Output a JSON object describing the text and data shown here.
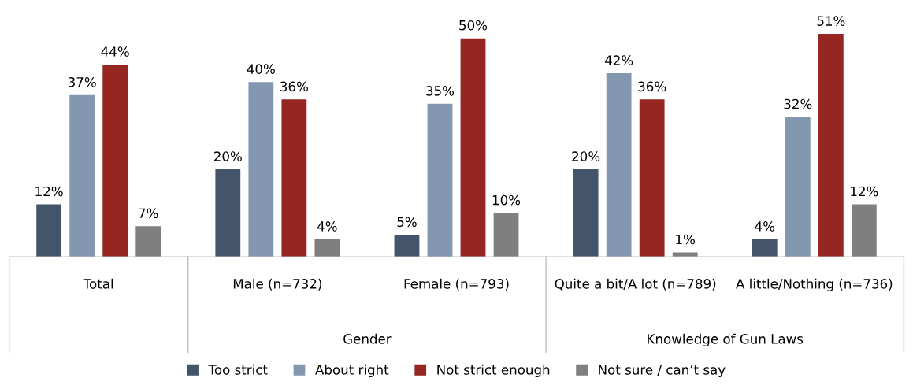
{
  "chart_data": {
    "type": "bar",
    "categories": [
      "Total",
      "Male (n=732)",
      "Female (n=793)",
      "Quite a bit/A lot (n=789)",
      "A little/Nothing (n=736)"
    ],
    "series": [
      {
        "name": "Too strict",
        "color": "#44546a",
        "values": [
          12,
          20,
          5,
          20,
          4
        ],
        "value_labels": [
          "12%",
          "20%",
          "5%",
          "20%",
          "4%"
        ]
      },
      {
        "name": "About right",
        "color": "#8497b0",
        "values": [
          37,
          40,
          35,
          42,
          32
        ],
        "value_labels": [
          "37%",
          "40%",
          "35%",
          "42%",
          "32%"
        ]
      },
      {
        "name": "Not strict enough",
        "color": "#952622",
        "values": [
          44,
          36,
          50,
          36,
          51
        ],
        "value_labels": [
          "44%",
          "36%",
          "50%",
          "36%",
          "51%"
        ]
      },
      {
        "name": "Not sure / can’t say",
        "color": "#7f7f7f",
        "values": [
          7,
          4,
          10,
          1,
          12
        ],
        "value_labels": [
          "7%",
          "4%",
          "10%",
          "1%",
          "12%"
        ]
      }
    ],
    "annotations": [
      "Gender",
      "Knowledge of Gun Laws"
    ],
    "grid": false,
    "legend": "bottom"
  }
}
